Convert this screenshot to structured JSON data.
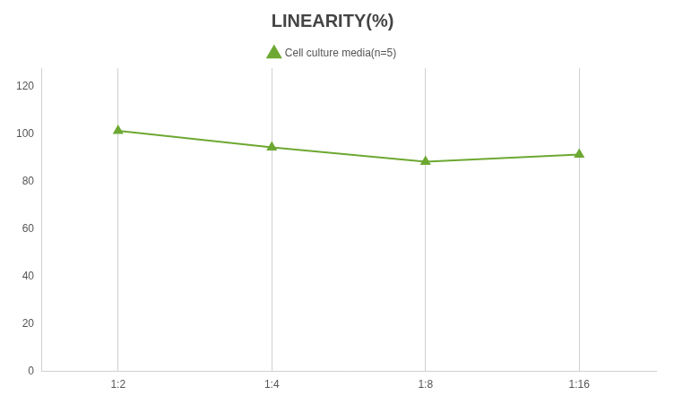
{
  "chart_data": {
    "type": "line",
    "title": "LINEARITY(%)",
    "categories": [
      "1:2",
      "1:4",
      "1:8",
      "1:16"
    ],
    "series": [
      {
        "name": "Cell culture media(n=5)",
        "color": "#6da832",
        "marker": "triangle",
        "values": [
          101.5,
          94.5,
          88.5,
          91.5
        ]
      }
    ],
    "ylim": [
      0,
      128
    ],
    "yticks": [
      0,
      20,
      40,
      60,
      80,
      100,
      120
    ],
    "grid": "x",
    "legend": "top"
  }
}
